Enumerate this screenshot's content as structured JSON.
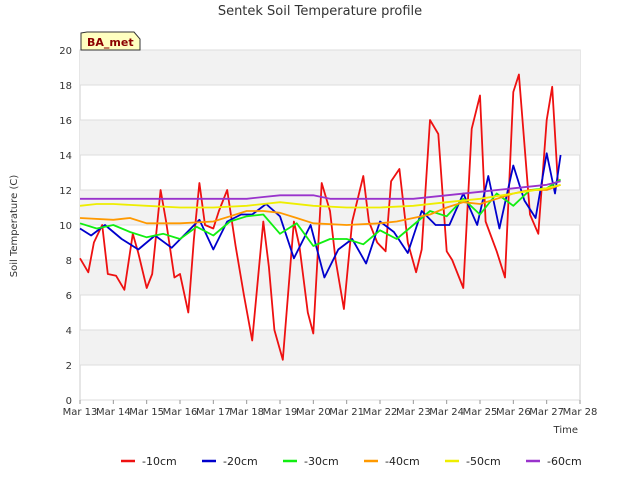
{
  "chart_data": {
    "type": "line",
    "title": "Sentek Soil Temperature profile",
    "xlabel": "Time",
    "ylabel": "Soil Temperature (C)",
    "badge": "BA_met",
    "ylim": [
      0,
      20
    ],
    "yticks": [
      0,
      2,
      4,
      6,
      8,
      10,
      12,
      14,
      16,
      18,
      20
    ],
    "xlim": [
      "2024-03-13",
      "2024-03-28"
    ],
    "xtick_labels": [
      "Mar 13",
      "Mar 14",
      "Mar 15",
      "Mar 16",
      "Mar 17",
      "Mar 18",
      "Mar 19",
      "Mar 20",
      "Mar 21",
      "Mar 22",
      "Mar 23",
      "Mar 24",
      "Mar 25",
      "Mar 26",
      "Mar 27",
      "Mar 28"
    ],
    "grid": "horizontal bands",
    "legend_position": "bottom",
    "colors": {
      "-10cm": "#ee1111",
      "-20cm": "#0000cc",
      "-30cm": "#11ee11",
      "-40cm": "#ff9900",
      "-50cm": "#eeee00",
      "-60cm": "#9933cc",
      "band": "#f2f2f2",
      "badge_bg": "#ffffc0"
    },
    "series": [
      {
        "name": "-10cm",
        "x": [
          "2024-03-13 00:00",
          "2024-03-13 06:00",
          "2024-03-13 10:00",
          "2024-03-13 16:00",
          "2024-03-13 20:00",
          "2024-03-14 02:00",
          "2024-03-14 08:00",
          "2024-03-14 14:00",
          "2024-03-14 18:00",
          "2024-03-15 00:00",
          "2024-03-15 04:00",
          "2024-03-15 10:00",
          "2024-03-15 14:00",
          "2024-03-15 20:00",
          "2024-03-16 00:00",
          "2024-03-16 06:00",
          "2024-03-16 10:00",
          "2024-03-16 14:00",
          "2024-03-16 18:00",
          "2024-03-17 00:00",
          "2024-03-17 04:00",
          "2024-03-17 10:00",
          "2024-03-17 16:00",
          "2024-03-17 22:00",
          "2024-03-18 04:00",
          "2024-03-18 12:00",
          "2024-03-18 16:00",
          "2024-03-18 20:00",
          "2024-03-19 02:00",
          "2024-03-19 10:00",
          "2024-03-19 14:00",
          "2024-03-19 20:00",
          "2024-03-20 00:00",
          "2024-03-20 06:00",
          "2024-03-20 12:00",
          "2024-03-20 16:00",
          "2024-03-20 22:00",
          "2024-03-21 04:00",
          "2024-03-21 12:00",
          "2024-03-21 16:00",
          "2024-03-21 22:00",
          "2024-03-22 04:00",
          "2024-03-22 08:00",
          "2024-03-22 14:00",
          "2024-03-22 20:00",
          "2024-03-23 02:00",
          "2024-03-23 06:00",
          "2024-03-23 12:00",
          "2024-03-23 18:00",
          "2024-03-24 00:00",
          "2024-03-24 04:00",
          "2024-03-24 12:00",
          "2024-03-24 18:00",
          "2024-03-25 00:00",
          "2024-03-25 04:00",
          "2024-03-25 12:00",
          "2024-03-25 18:00",
          "2024-03-26 00:00",
          "2024-03-26 04:00",
          "2024-03-26 12:00",
          "2024-03-26 18:00",
          "2024-03-27 00:00",
          "2024-03-27 04:00",
          "2024-03-27 08:00"
        ],
        "y": [
          8.1,
          7.3,
          9.0,
          10.0,
          7.2,
          7.1,
          6.3,
          9.5,
          8.4,
          6.4,
          7.2,
          12.0,
          10.2,
          7.0,
          7.2,
          5.0,
          9.2,
          12.4,
          10.0,
          9.8,
          10.8,
          12.0,
          8.8,
          6.0,
          3.4,
          10.2,
          7.6,
          4.0,
          2.3,
          10.2,
          8.8,
          5.0,
          3.8,
          12.4,
          10.8,
          8.0,
          5.2,
          10.2,
          12.8,
          10.2,
          9.0,
          8.5,
          12.5,
          13.2,
          9.0,
          7.3,
          8.6,
          16.0,
          15.2,
          8.5,
          8.0,
          6.4,
          15.5,
          17.4,
          10.2,
          8.5,
          7.0,
          17.6,
          18.6,
          10.6,
          9.5,
          16.0,
          17.9,
          12.5
        ]
      },
      {
        "name": "-20cm",
        "x": [
          "2024-03-13 00:00",
          "2024-03-13 08:00",
          "2024-03-13 18:00",
          "2024-03-14 06:00",
          "2024-03-14 18:00",
          "2024-03-15 06:00",
          "2024-03-15 18:00",
          "2024-03-16 04:00",
          "2024-03-16 14:00",
          "2024-03-17 00:00",
          "2024-03-17 10:00",
          "2024-03-17 20:00",
          "2024-03-18 04:00",
          "2024-03-18 14:00",
          "2024-03-19 00:00",
          "2024-03-19 10:00",
          "2024-03-19 22:00",
          "2024-03-20 08:00",
          "2024-03-20 18:00",
          "2024-03-21 04:00",
          "2024-03-21 14:00",
          "2024-03-22 00:00",
          "2024-03-22 10:00",
          "2024-03-22 20:00",
          "2024-03-23 06:00",
          "2024-03-23 16:00",
          "2024-03-24 02:00",
          "2024-03-24 12:00",
          "2024-03-24 22:00",
          "2024-03-25 06:00",
          "2024-03-25 14:00",
          "2024-03-26 00:00",
          "2024-03-26 08:00",
          "2024-03-26 16:00",
          "2024-03-27 00:00",
          "2024-03-27 06:00",
          "2024-03-27 10:00"
        ],
        "y": [
          9.8,
          9.4,
          10.0,
          9.2,
          8.6,
          9.4,
          8.7,
          9.5,
          10.3,
          8.6,
          10.2,
          10.6,
          10.6,
          11.2,
          10.5,
          8.1,
          10.0,
          7.0,
          8.6,
          9.2,
          7.8,
          10.2,
          9.6,
          8.4,
          10.8,
          10.0,
          10.0,
          11.8,
          10.0,
          12.8,
          9.8,
          13.4,
          11.4,
          10.4,
          14.1,
          11.8,
          14.0
        ]
      },
      {
        "name": "-30cm",
        "x": [
          "2024-03-13 00:00",
          "2024-03-13 12:00",
          "2024-03-14 00:00",
          "2024-03-14 12:00",
          "2024-03-15 00:00",
          "2024-03-15 12:00",
          "2024-03-16 00:00",
          "2024-03-16 12:00",
          "2024-03-17 00:00",
          "2024-03-17 12:00",
          "2024-03-18 00:00",
          "2024-03-18 12:00",
          "2024-03-19 00:00",
          "2024-03-19 12:00",
          "2024-03-20 00:00",
          "2024-03-20 12:00",
          "2024-03-21 00:00",
          "2024-03-21 12:00",
          "2024-03-22 00:00",
          "2024-03-22 12:00",
          "2024-03-23 00:00",
          "2024-03-23 12:00",
          "2024-03-24 00:00",
          "2024-03-24 12:00",
          "2024-03-25 00:00",
          "2024-03-25 12:00",
          "2024-03-26 00:00",
          "2024-03-26 12:00",
          "2024-03-27 00:00",
          "2024-03-27 10:00"
        ],
        "y": [
          10.1,
          9.8,
          10.0,
          9.6,
          9.3,
          9.5,
          9.2,
          9.9,
          9.4,
          10.2,
          10.5,
          10.6,
          9.5,
          10.1,
          8.8,
          9.2,
          9.2,
          8.9,
          9.7,
          9.2,
          10.0,
          10.8,
          10.5,
          11.5,
          10.6,
          11.8,
          11.1,
          12.0,
          12.1,
          12.6
        ]
      },
      {
        "name": "-40cm",
        "x": [
          "2024-03-13 00:00",
          "2024-03-14 00:00",
          "2024-03-14 12:00",
          "2024-03-15 00:00",
          "2024-03-16 00:00",
          "2024-03-17 00:00",
          "2024-03-17 12:00",
          "2024-03-18 00:00",
          "2024-03-18 12:00",
          "2024-03-19 00:00",
          "2024-03-19 12:00",
          "2024-03-20 00:00",
          "2024-03-21 00:00",
          "2024-03-22 00:00",
          "2024-03-22 12:00",
          "2024-03-23 00:00",
          "2024-03-23 12:00",
          "2024-03-24 00:00",
          "2024-03-24 12:00",
          "2024-03-25 00:00",
          "2024-03-25 12:00",
          "2024-03-26 00:00",
          "2024-03-26 12:00",
          "2024-03-27 00:00",
          "2024-03-27 10:00"
        ],
        "y": [
          10.4,
          10.3,
          10.4,
          10.1,
          10.1,
          10.2,
          10.5,
          10.8,
          10.8,
          10.7,
          10.4,
          10.1,
          10.0,
          10.1,
          10.2,
          10.4,
          10.6,
          11.0,
          11.3,
          11.2,
          11.5,
          11.8,
          12.0,
          12.0,
          12.3
        ]
      },
      {
        "name": "-50cm",
        "x": [
          "2024-03-13 00:00",
          "2024-03-13 12:00",
          "2024-03-14 00:00",
          "2024-03-15 00:00",
          "2024-03-16 00:00",
          "2024-03-17 00:00",
          "2024-03-18 00:00",
          "2024-03-19 00:00",
          "2024-03-20 00:00",
          "2024-03-21 00:00",
          "2024-03-22 00:00",
          "2024-03-23 00:00",
          "2024-03-24 00:00",
          "2024-03-25 00:00",
          "2024-03-26 00:00",
          "2024-03-27 00:00",
          "2024-03-27 10:00"
        ],
        "y": [
          11.1,
          11.2,
          11.2,
          11.1,
          11.0,
          11.0,
          11.1,
          11.3,
          11.1,
          11.0,
          11.0,
          11.1,
          11.3,
          11.5,
          11.8,
          12.1,
          12.3
        ]
      },
      {
        "name": "-60cm",
        "x": [
          "2024-03-13 00:00",
          "2024-03-14 00:00",
          "2024-03-15 00:00",
          "2024-03-16 00:00",
          "2024-03-17 00:00",
          "2024-03-18 00:00",
          "2024-03-18 12:00",
          "2024-03-19 00:00",
          "2024-03-20 00:00",
          "2024-03-20 12:00",
          "2024-03-21 00:00",
          "2024-03-22 00:00",
          "2024-03-23 00:00",
          "2024-03-24 00:00",
          "2024-03-25 00:00",
          "2024-03-26 00:00",
          "2024-03-27 00:00",
          "2024-03-27 10:00"
        ],
        "y": [
          11.5,
          11.5,
          11.5,
          11.5,
          11.5,
          11.5,
          11.6,
          11.7,
          11.7,
          11.5,
          11.5,
          11.5,
          11.5,
          11.7,
          11.9,
          12.1,
          12.3,
          12.5
        ]
      }
    ]
  }
}
